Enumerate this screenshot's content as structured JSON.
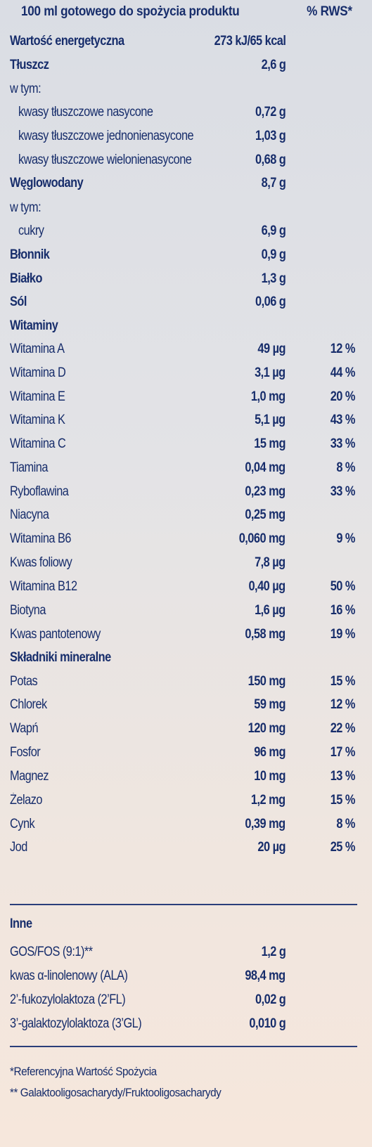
{
  "header": {
    "left": "100 ml gotowego do spożycia produktu",
    "right": "% RWS*"
  },
  "rows": [
    {
      "label": "Wartość energetyczna",
      "value": "273 kJ/65 kcal",
      "pct": "",
      "bold": true,
      "indent": false
    },
    {
      "label": "Tłuszcz",
      "value": "2,6 g",
      "pct": "",
      "bold": true,
      "indent": false
    },
    {
      "label": "w tym:",
      "value": "",
      "pct": "",
      "bold": false,
      "indent": false
    },
    {
      "label": "kwasy tłuszczowe nasycone",
      "value": "0,72 g",
      "pct": "",
      "bold": false,
      "indent": true
    },
    {
      "label": "kwasy tłuszczowe jednonienasycone",
      "value": "1,03 g",
      "pct": "",
      "bold": false,
      "indent": true
    },
    {
      "label": "kwasy tłuszczowe wielonienasycone",
      "value": "0,68 g",
      "pct": "",
      "bold": false,
      "indent": true
    },
    {
      "label": "Węglowodany",
      "value": "8,7 g",
      "pct": "",
      "bold": true,
      "indent": false
    },
    {
      "label": "w tym:",
      "value": "",
      "pct": "",
      "bold": false,
      "indent": false
    },
    {
      "label": "cukry",
      "value": "6,9 g",
      "pct": "",
      "bold": false,
      "indent": true
    },
    {
      "label": "Błonnik",
      "value": "0,9 g",
      "pct": "",
      "bold": true,
      "indent": false
    },
    {
      "label": "Białko",
      "value": "1,3 g",
      "pct": "",
      "bold": true,
      "indent": false
    },
    {
      "label": "Sól",
      "value": "0,06 g",
      "pct": "",
      "bold": true,
      "indent": false
    },
    {
      "label": "Witaminy",
      "value": "",
      "pct": "",
      "bold": true,
      "indent": false
    },
    {
      "label": "Witamina A",
      "value": "49 µg",
      "pct": "12 %",
      "bold": false,
      "indent": false
    },
    {
      "label": "Witamina D",
      "value": "3,1 µg",
      "pct": "44 %",
      "bold": false,
      "indent": false
    },
    {
      "label": "Witamina E",
      "value": "1,0 mg",
      "pct": "20 %",
      "bold": false,
      "indent": false
    },
    {
      "label": "Witamina K",
      "value": "5,1 µg",
      "pct": "43 %",
      "bold": false,
      "indent": false
    },
    {
      "label": "Witamina C",
      "value": "15 mg",
      "pct": "33 %",
      "bold": false,
      "indent": false
    },
    {
      "label": "Tiamina",
      "value": "0,04 mg",
      "pct": "8 %",
      "bold": false,
      "indent": false
    },
    {
      "label": "Ryboflawina",
      "value": "0,23 mg",
      "pct": "33 %",
      "bold": false,
      "indent": false
    },
    {
      "label": "Niacyna",
      "value": "0,25 mg",
      "pct": "",
      "bold": false,
      "indent": false
    },
    {
      "label": "Witamina B6",
      "value": "0,060 mg",
      "pct": "9 %",
      "bold": false,
      "indent": false
    },
    {
      "label": "Kwas foliowy",
      "value": "7,8 µg",
      "pct": "",
      "bold": false,
      "indent": false
    },
    {
      "label": "Witamina B12",
      "value": "0,40 µg",
      "pct": "50 %",
      "bold": false,
      "indent": false
    },
    {
      "label": "Biotyna",
      "value": "1,6 µg",
      "pct": "16 %",
      "bold": false,
      "indent": false
    },
    {
      "label": "Kwas pantotenowy",
      "value": "0,58 mg",
      "pct": "19 %",
      "bold": false,
      "indent": false
    },
    {
      "label": "Składniki mineralne",
      "value": "",
      "pct": "",
      "bold": true,
      "indent": false
    },
    {
      "label": "Potas",
      "value": "150 mg",
      "pct": "15 %",
      "bold": false,
      "indent": false
    },
    {
      "label": "Chlorek",
      "value": "59 mg",
      "pct": "12 %",
      "bold": false,
      "indent": false
    },
    {
      "label": "Wapń",
      "value": "120 mg",
      "pct": "22 %",
      "bold": false,
      "indent": false
    },
    {
      "label": "Fosfor",
      "value": "96 mg",
      "pct": "17 %",
      "bold": false,
      "indent": false
    },
    {
      "label": "Magnez",
      "value": "10 mg",
      "pct": "13 %",
      "bold": false,
      "indent": false
    },
    {
      "label": "Żelazo",
      "value": "1,2 mg",
      "pct": "15 %",
      "bold": false,
      "indent": false
    },
    {
      "label": "Cynk",
      "value": "0,39 mg",
      "pct": "8 %",
      "bold": false,
      "indent": false
    },
    {
      "label": "Jod",
      "value": "20 µg",
      "pct": "25 %",
      "bold": false,
      "indent": false
    }
  ],
  "other": {
    "heading": "Inne",
    "rows": [
      {
        "label": "GOS/FOS (9:1)**",
        "value": "1,2 g"
      },
      {
        "label": "kwas α-linolenowy (ALA)",
        "value": "98,4 mg"
      },
      {
        "label": "2’-fukozylolaktoza (2’FL)",
        "value": "0,02 g"
      },
      {
        "label": "3’-galaktozylolaktoza (3’GL)",
        "value": "0,010 g"
      }
    ]
  },
  "footnotes": [
    "*Referencyjna Wartość Spożycia",
    "** Galaktooligosacharydy/Fruktooligosacharydy"
  ],
  "colors": {
    "text": "#172d6b",
    "rule": "#2a3e7a"
  }
}
